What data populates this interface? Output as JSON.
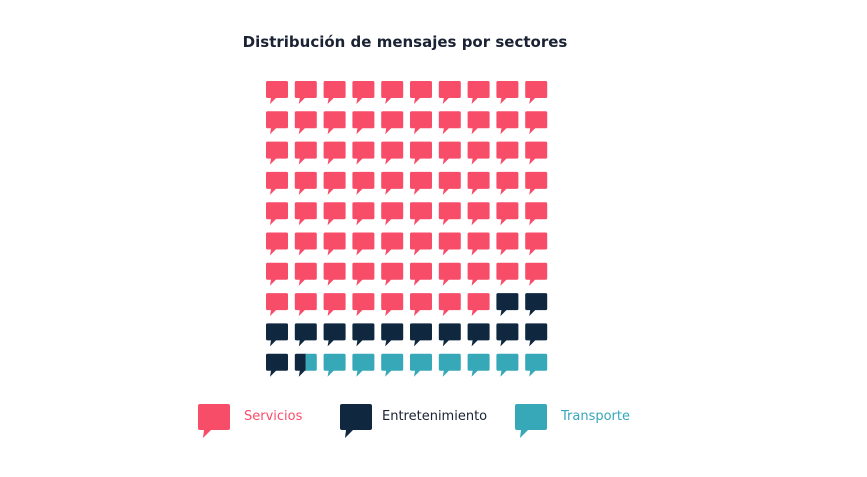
{
  "chart_data": {
    "type": "waffle",
    "title": "Distribución de mensajes por sectores",
    "grid": {
      "rows": 10,
      "cols": 10,
      "order": "row-major"
    },
    "unit_icon": "speech-bubble-icon",
    "series": [
      {
        "name": "Servicios",
        "value": 78,
        "color": "#f84d69"
      },
      {
        "name": "Entretenimiento",
        "value": 13.5,
        "color": "#0f2840"
      },
      {
        "name": "Transporte",
        "value": 8.5,
        "color": "#36a8b8"
      }
    ],
    "legend": {
      "position": "bottom"
    }
  }
}
